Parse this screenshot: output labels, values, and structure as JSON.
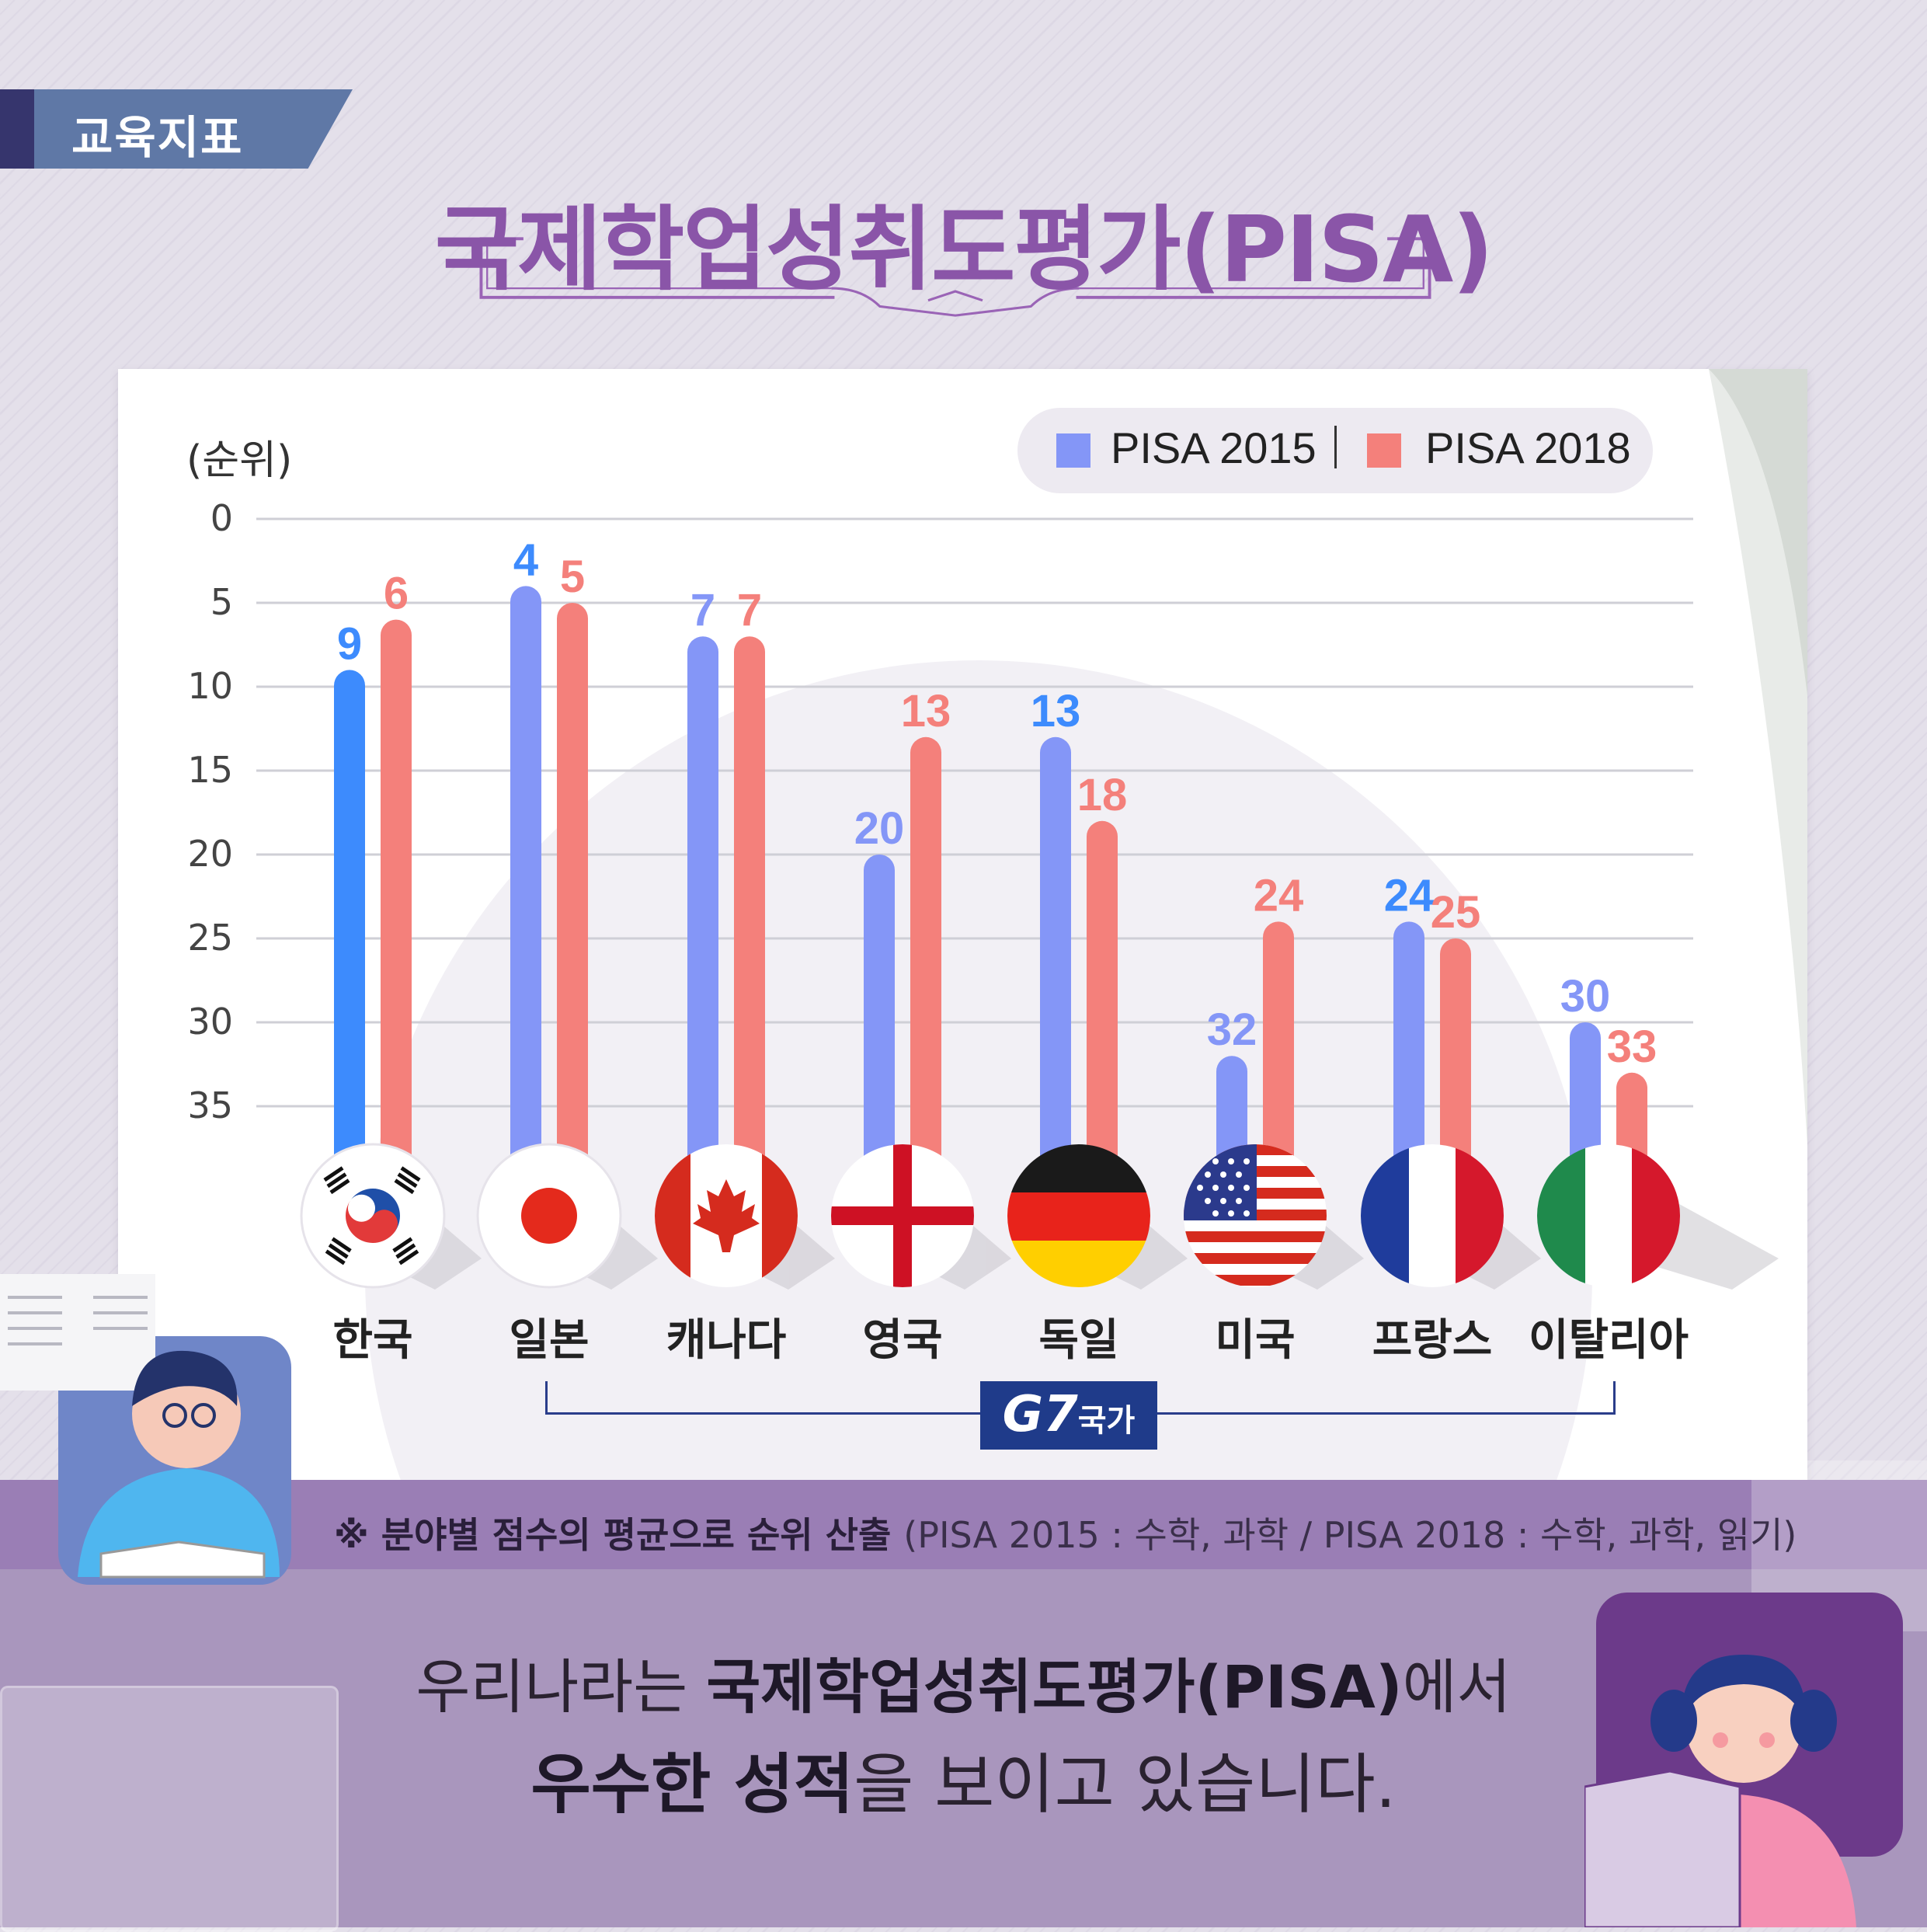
{
  "header": {
    "tag": "교육지표",
    "title": "국제학업성취도평가(PISA)"
  },
  "chart_data": {
    "type": "bar",
    "ylabel": "(순위)",
    "y_ticks": [
      "0",
      "5",
      "10",
      "15",
      "20",
      "25",
      "30",
      "35"
    ],
    "ylim": [
      0,
      35
    ],
    "y_inverted": true,
    "categories": [
      "한국",
      "일본",
      "캐나다",
      "영국",
      "독일",
      "미국",
      "프랑스",
      "이탈리아"
    ],
    "series": [
      {
        "name": "PISA 2015",
        "values": [
          9,
          4,
          7,
          20,
          13,
          32,
          24,
          30
        ],
        "color": "#8496f7"
      },
      {
        "name": "PISA 2018",
        "values": [
          6,
          5,
          7,
          13,
          18,
          24,
          25,
          33
        ],
        "color": "#f4807b"
      }
    ],
    "highlight": {
      "category": "한국",
      "series": "PISA 2015",
      "color": "#3d8bfd"
    },
    "legend": "top-right",
    "grid": true,
    "group_label": {
      "text": "G7",
      "suffix": "국가",
      "from": "일본",
      "to": "이탈리아"
    }
  },
  "flags": [
    "korea-flag-icon",
    "japan-flag-icon",
    "canada-flag-icon",
    "england-flag-icon",
    "germany-flag-icon",
    "usa-flag-icon",
    "france-flag-icon",
    "italy-flag-icon"
  ],
  "footer": {
    "note": "※ 분야별 점수의 평균으로 순위 산출",
    "note_detail": "(PISA 2015 : 수학, 과학 / PISA 2018 : 수학, 과학, 읽기)",
    "msg1_a": "우리나라는 ",
    "msg1_b": "국제학업성취도평가(PISA)",
    "msg1_c": "에서",
    "msg2_a": "우수한 성적",
    "msg2_b": "을 보이고 있습니다."
  }
}
